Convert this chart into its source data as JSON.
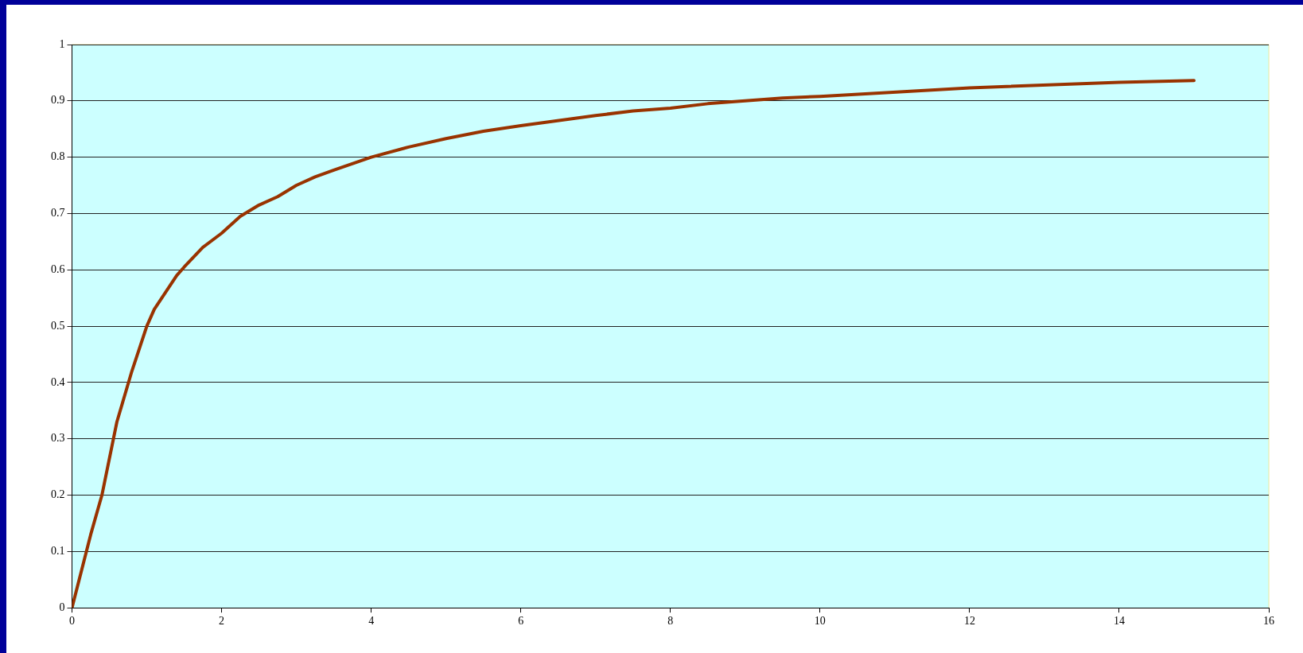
{
  "chart_data": {
    "type": "line",
    "x": [
      0,
      0.25,
      0.4,
      0.6,
      0.8,
      1,
      1.1,
      1.25,
      1.4,
      1.5,
      1.75,
      2,
      2.25,
      2.5,
      2.75,
      3,
      3.25,
      3.5,
      4,
      4.5,
      5,
      5.5,
      6,
      7,
      7.5,
      8,
      8.5,
      9.5,
      10,
      12,
      14,
      15
    ],
    "series": [
      {
        "color": "#993300",
        "values": [
          0,
          0.13,
          0.2,
          0.33,
          0.42,
          0.5,
          0.53,
          0.56,
          0.59,
          0.605,
          0.64,
          0.665,
          0.695,
          0.715,
          0.73,
          0.75,
          0.765,
          0.777,
          0.8,
          0.818,
          0.833,
          0.846,
          0.856,
          0.874,
          0.882,
          0.887,
          0.895,
          0.905,
          0.908,
          0.923,
          0.933,
          0.936
        ]
      }
    ],
    "xlim": [
      0,
      16
    ],
    "xticks": [
      0,
      2,
      4,
      6,
      8,
      10,
      12,
      14,
      16
    ],
    "ylim": [
      0,
      1
    ],
    "yticks": [
      0,
      0.1,
      0.2,
      0.3,
      0.4,
      0.5,
      0.6,
      0.7,
      0.8,
      0.9,
      1
    ],
    "grid": "y",
    "legend": false,
    "marker": "none",
    "line_style": "solid"
  }
}
